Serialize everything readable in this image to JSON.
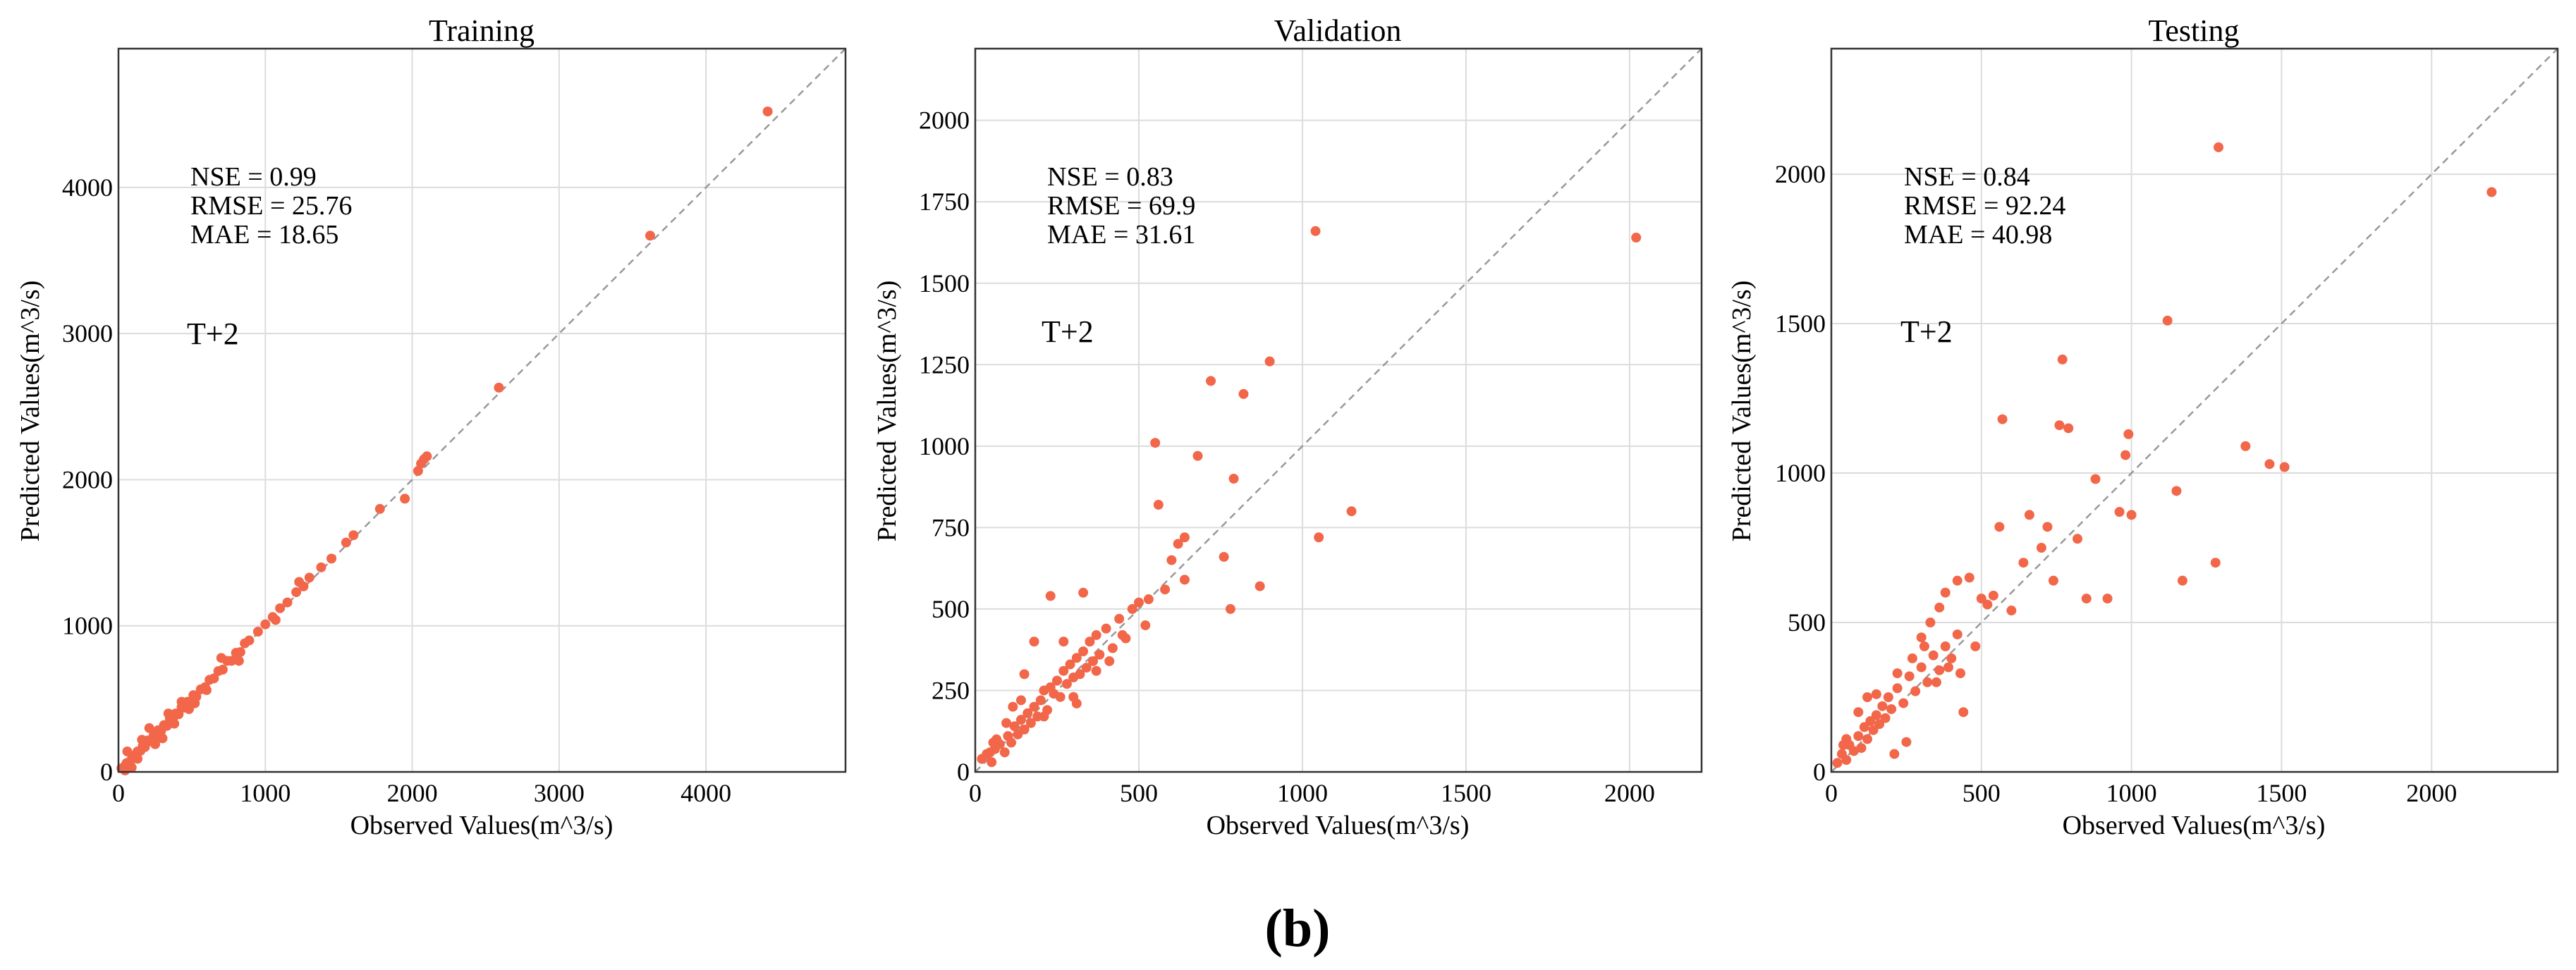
{
  "figure": {
    "caption": "(b)"
  },
  "colors": {
    "point": "#f2674a",
    "grid": "#dcdcdc",
    "reference": "#999999",
    "frame": "#333333"
  },
  "chart_data": [
    {
      "type": "scatter",
      "title": "Training",
      "xlabel": "Observed Values(m^3/s)",
      "ylabel": "Predicted Values(m^3/s)",
      "xlim": [
        0,
        4950
      ],
      "ylim": [
        0,
        4950
      ],
      "xticks": [
        0,
        1000,
        2000,
        3000,
        4000
      ],
      "yticks": [
        0,
        1000,
        2000,
        3000,
        4000
      ],
      "xtick_labels": [
        "0",
        "1000",
        "2000",
        "3000",
        "4000"
      ],
      "ytick_labels": [
        "0",
        "1000",
        "2000",
        "3000",
        "4000"
      ],
      "grid": true,
      "reference_line": "y = x",
      "stats": [
        "NSE = 0.99",
        "RMSE = 25.76",
        "MAE = 18.65"
      ],
      "lead": "T+2",
      "points": [
        [
          20,
          25
        ],
        [
          40,
          35
        ],
        [
          55,
          60
        ],
        [
          70,
          65
        ],
        [
          85,
          80
        ],
        [
          100,
          110
        ],
        [
          115,
          105
        ],
        [
          130,
          140
        ],
        [
          150,
          145
        ],
        [
          165,
          175
        ],
        [
          180,
          170
        ],
        [
          200,
          215
        ],
        [
          220,
          210
        ],
        [
          240,
          250
        ],
        [
          255,
          245
        ],
        [
          270,
          285
        ],
        [
          290,
          280
        ],
        [
          310,
          320
        ],
        [
          330,
          315
        ],
        [
          350,
          365
        ],
        [
          370,
          360
        ],
        [
          390,
          400
        ],
        [
          410,
          395
        ],
        [
          430,
          445
        ],
        [
          450,
          440
        ],
        [
          470,
          480
        ],
        [
          490,
          470
        ],
        [
          510,
          525
        ],
        [
          530,
          515
        ],
        [
          560,
          565
        ],
        [
          590,
          580
        ],
        [
          620,
          630
        ],
        [
          650,
          640
        ],
        [
          680,
          690
        ],
        [
          710,
          700
        ],
        [
          740,
          760
        ],
        [
          770,
          760
        ],
        [
          800,
          815
        ],
        [
          830,
          820
        ],
        [
          860,
          880
        ],
        [
          890,
          900
        ],
        [
          950,
          960
        ],
        [
          1000,
          1010
        ],
        [
          1050,
          1060
        ],
        [
          1100,
          1120
        ],
        [
          1150,
          1160
        ],
        [
          1210,
          1230
        ],
        [
          1260,
          1270
        ],
        [
          1300,
          1330
        ],
        [
          1380,
          1400
        ],
        [
          1450,
          1460
        ],
        [
          1550,
          1570
        ],
        [
          1600,
          1620
        ],
        [
          1780,
          1800
        ],
        [
          1950,
          1870
        ],
        [
          2040,
          2060
        ],
        [
          2060,
          2110
        ],
        [
          2100,
          2160
        ],
        [
          2080,
          2140
        ],
        [
          2590,
          2630
        ],
        [
          3620,
          3670
        ],
        [
          4420,
          4520
        ],
        [
          60,
          140
        ],
        [
          130,
          90
        ],
        [
          210,
          300
        ],
        [
          300,
          230
        ],
        [
          380,
          330
        ],
        [
          480,
          430
        ],
        [
          600,
          560
        ],
        [
          700,
          780
        ],
        [
          820,
          760
        ],
        [
          1070,
          1040
        ],
        [
          1230,
          1300
        ],
        [
          45,
          10
        ],
        [
          90,
          30
        ],
        [
          160,
          220
        ],
        [
          250,
          190
        ],
        [
          340,
          400
        ],
        [
          430,
          480
        ],
        [
          520,
          470
        ]
      ]
    },
    {
      "type": "scatter",
      "title": "Validation",
      "xlabel": "Observed Values(m^3/s)",
      "ylabel": "Predicted Values(m^3/s)",
      "xlim": [
        0,
        2220
      ],
      "ylim": [
        0,
        2220
      ],
      "xticks": [
        0,
        500,
        1000,
        1500,
        2000
      ],
      "yticks": [
        0,
        250,
        500,
        750,
        1000,
        1250,
        1500,
        1750,
        2000
      ],
      "xtick_labels": [
        "0",
        "500",
        "1000",
        "1500",
        "2000"
      ],
      "ytick_labels": [
        "0",
        "250",
        "500",
        "750",
        "1000",
        "1250",
        "1500",
        "1750",
        "2000"
      ],
      "grid": true,
      "reference_line": "y = x",
      "stats": [
        "NSE = 0.83",
        "RMSE = 69.9",
        "MAE = 31.61"
      ],
      "lead": "T+2",
      "points": [
        [
          20,
          40
        ],
        [
          35,
          55
        ],
        [
          50,
          30
        ],
        [
          60,
          70
        ],
        [
          75,
          85
        ],
        [
          90,
          60
        ],
        [
          100,
          110
        ],
        [
          110,
          90
        ],
        [
          120,
          140
        ],
        [
          130,
          115
        ],
        [
          140,
          160
        ],
        [
          150,
          130
        ],
        [
          160,
          180
        ],
        [
          170,
          150
        ],
        [
          180,
          200
        ],
        [
          190,
          170
        ],
        [
          200,
          220
        ],
        [
          210,
          250
        ],
        [
          220,
          190
        ],
        [
          230,
          260
        ],
        [
          240,
          240
        ],
        [
          250,
          280
        ],
        [
          260,
          230
        ],
        [
          270,
          310
        ],
        [
          280,
          270
        ],
        [
          290,
          330
        ],
        [
          300,
          290
        ],
        [
          310,
          350
        ],
        [
          320,
          300
        ],
        [
          330,
          370
        ],
        [
          340,
          320
        ],
        [
          350,
          400
        ],
        [
          360,
          340
        ],
        [
          370,
          420
        ],
        [
          380,
          360
        ],
        [
          400,
          440
        ],
        [
          420,
          380
        ],
        [
          440,
          470
        ],
        [
          460,
          410
        ],
        [
          480,
          500
        ],
        [
          500,
          520
        ],
        [
          520,
          450
        ],
        [
          550,
          1010
        ],
        [
          560,
          820
        ],
        [
          600,
          650
        ],
        [
          620,
          700
        ],
        [
          640,
          720
        ],
        [
          680,
          970
        ],
        [
          720,
          1200
        ],
        [
          760,
          660
        ],
        [
          780,
          500
        ],
        [
          790,
          900
        ],
        [
          820,
          1160
        ],
        [
          870,
          570
        ],
        [
          900,
          1260
        ],
        [
          1040,
          1660
        ],
        [
          1050,
          720
        ],
        [
          1150,
          800
        ],
        [
          2020,
          1640
        ],
        [
          230,
          540
        ],
        [
          250,
          280
        ],
        [
          270,
          400
        ],
        [
          300,
          230
        ],
        [
          330,
          550
        ],
        [
          180,
          400
        ],
        [
          150,
          300
        ],
        [
          210,
          170
        ],
        [
          140,
          220
        ],
        [
          115,
          200
        ],
        [
          95,
          150
        ],
        [
          65,
          100
        ],
        [
          55,
          90
        ],
        [
          45,
          60
        ],
        [
          310,
          210
        ],
        [
          370,
          310
        ],
        [
          410,
          340
        ],
        [
          450,
          420
        ],
        [
          530,
          530
        ],
        [
          580,
          560
        ],
        [
          640,
          590
        ]
      ]
    },
    {
      "type": "scatter",
      "title": "Testing",
      "xlabel": "Observed Values(m^3/s)",
      "ylabel": "Predicted Values(m^3/s)",
      "xlim": [
        0,
        2420
      ],
      "ylim": [
        0,
        2420
      ],
      "xticks": [
        0,
        500,
        1000,
        1500,
        2000
      ],
      "yticks": [
        0,
        500,
        1000,
        1500,
        2000
      ],
      "xtick_labels": [
        "0",
        "500",
        "1000",
        "1500",
        "2000"
      ],
      "ytick_labels": [
        "0",
        "500",
        "1000",
        "1500",
        "2000"
      ],
      "grid": true,
      "reference_line": "y = x",
      "stats": [
        "NSE = 0.84",
        "RMSE = 92.24",
        "MAE = 40.98"
      ],
      "lead": "T+2",
      "points": [
        [
          20,
          30
        ],
        [
          35,
          60
        ],
        [
          50,
          40
        ],
        [
          60,
          90
        ],
        [
          75,
          70
        ],
        [
          90,
          120
        ],
        [
          100,
          80
        ],
        [
          110,
          150
        ],
        [
          120,
          110
        ],
        [
          130,
          170
        ],
        [
          140,
          140
        ],
        [
          150,
          190
        ],
        [
          160,
          160
        ],
        [
          170,
          220
        ],
        [
          180,
          180
        ],
        [
          190,
          250
        ],
        [
          200,
          210
        ],
        [
          220,
          280
        ],
        [
          240,
          230
        ],
        [
          260,
          320
        ],
        [
          280,
          270
        ],
        [
          300,
          350
        ],
        [
          320,
          300
        ],
        [
          340,
          390
        ],
        [
          360,
          340
        ],
        [
          380,
          420
        ],
        [
          400,
          380
        ],
        [
          420,
          460
        ],
        [
          440,
          200
        ],
        [
          460,
          650
        ],
        [
          500,
          580
        ],
        [
          540,
          590
        ],
        [
          560,
          820
        ],
        [
          570,
          1180
        ],
        [
          600,
          540
        ],
        [
          640,
          700
        ],
        [
          660,
          860
        ],
        [
          700,
          750
        ],
        [
          720,
          820
        ],
        [
          740,
          640
        ],
        [
          760,
          1160
        ],
        [
          770,
          1380
        ],
        [
          790,
          1150
        ],
        [
          820,
          780
        ],
        [
          850,
          580
        ],
        [
          880,
          980
        ],
        [
          920,
          580
        ],
        [
          960,
          870
        ],
        [
          980,
          1060
        ],
        [
          990,
          1130
        ],
        [
          1000,
          860
        ],
        [
          1120,
          1510
        ],
        [
          1150,
          940
        ],
        [
          1170,
          640
        ],
        [
          1280,
          700
        ],
        [
          1290,
          2090
        ],
        [
          1380,
          1090
        ],
        [
          1460,
          1030
        ],
        [
          1510,
          1020
        ],
        [
          2200,
          1940
        ],
        [
          250,
          100
        ],
        [
          210,
          60
        ],
        [
          300,
          450
        ],
        [
          330,
          500
        ],
        [
          360,
          550
        ],
        [
          380,
          600
        ],
        [
          420,
          640
        ],
        [
          120,
          250
        ],
        [
          90,
          200
        ],
        [
          150,
          260
        ],
        [
          50,
          110
        ],
        [
          40,
          90
        ],
        [
          220,
          330
        ],
        [
          270,
          380
        ],
        [
          310,
          420
        ],
        [
          350,
          300
        ],
        [
          390,
          350
        ],
        [
          430,
          330
        ],
        [
          480,
          420
        ],
        [
          520,
          560
        ]
      ]
    }
  ]
}
